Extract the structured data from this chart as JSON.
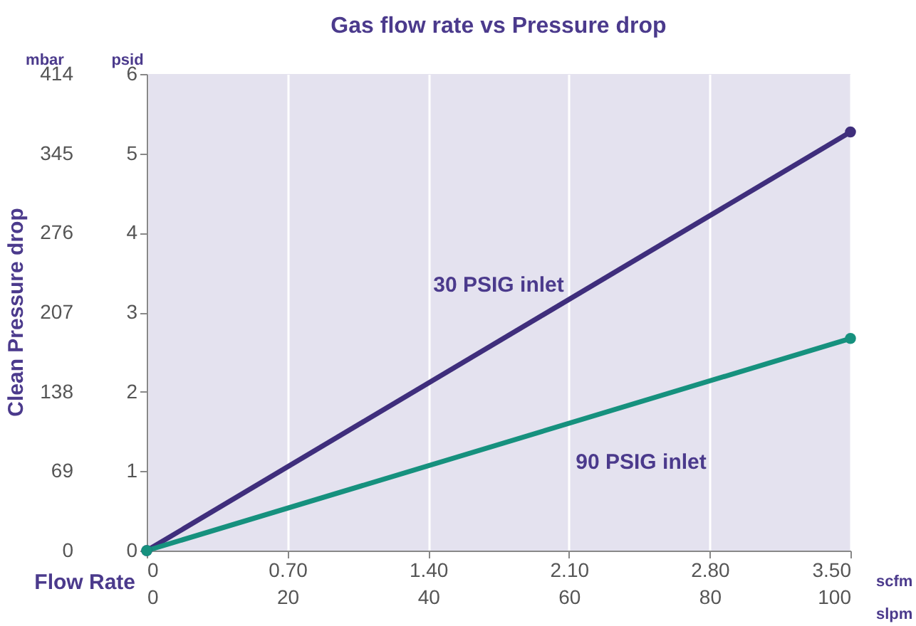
{
  "chart_data": {
    "type": "line",
    "title": "Gas flow rate vs Pressure drop",
    "xlabel": "Flow Rate",
    "ylabel": "psid",
    "y2label": "mbar",
    "x2label": "slpm",
    "annotations": [
      "Clean Pressure drop",
      "scfm"
    ],
    "x": [
      0,
      3.5
    ],
    "series": [
      {
        "name": "30 PSIG inlet",
        "color": "#3f2e7c",
        "values": [
          0,
          5.27
        ]
      },
      {
        "name": "90 PSIG inlet",
        "color": "#16917e",
        "values": [
          0,
          2.67
        ]
      }
    ],
    "xlim": [
      0,
      3.5
    ],
    "xticks": [
      0,
      {
        "value": 0.7,
        "label": "0.70"
      },
      {
        "value": 1.4,
        "label": "1.40"
      },
      {
        "value": 2.1,
        "label": "2.10"
      },
      {
        "value": 2.8,
        "label": "2.80"
      },
      {
        "value": 3.5,
        "label": "3.50"
      }
    ],
    "ylim": [
      0,
      6
    ],
    "yticks": [
      0,
      1,
      2,
      3,
      4,
      5,
      6
    ],
    "y2lim": [
      0,
      414
    ],
    "y2ticks": [
      0,
      69,
      138,
      207,
      276,
      345,
      414
    ],
    "x2lim": [
      0,
      100
    ],
    "x2ticks": [
      0,
      20,
      40,
      60,
      80,
      100
    ],
    "grid": "x",
    "legend": false,
    "marker": "circle",
    "line_style": "solid"
  }
}
